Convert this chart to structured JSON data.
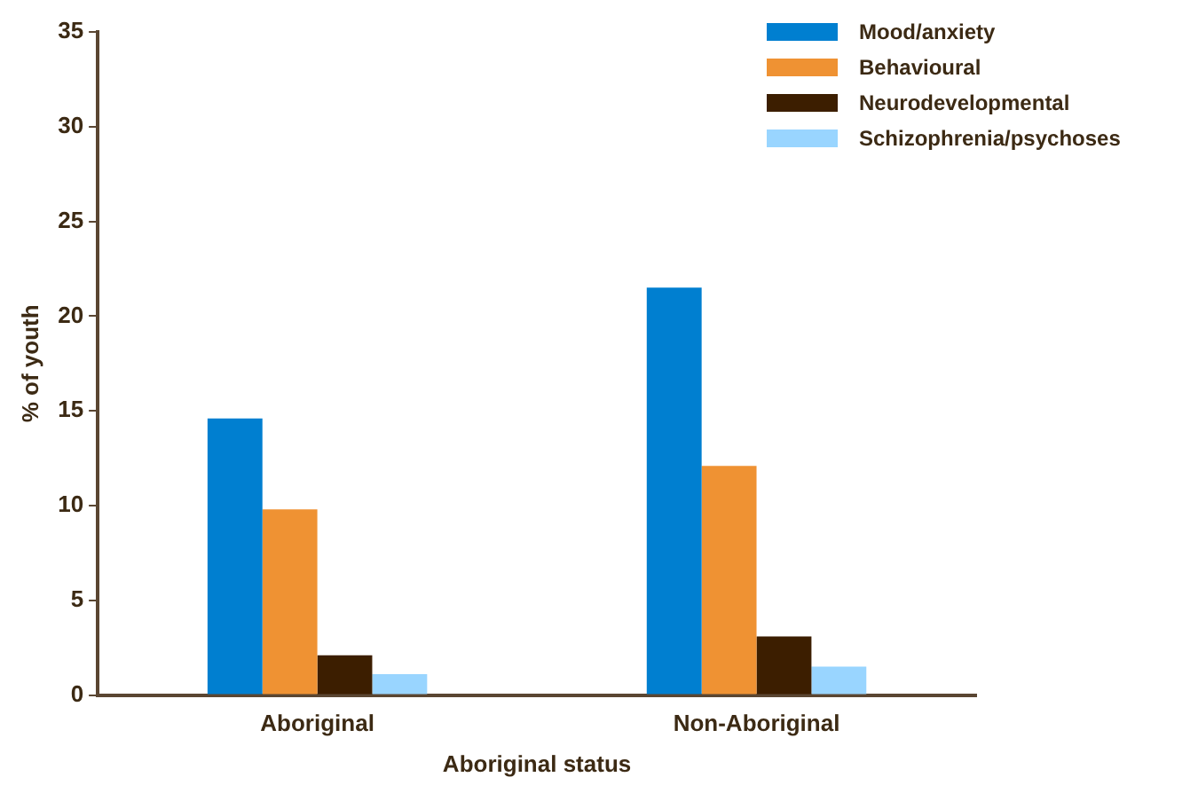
{
  "chart_data": {
    "type": "bar",
    "xlabel": "Aboriginal status",
    "ylabel": "% of youth",
    "categories": [
      "Aboriginal",
      "Non-Aboriginal"
    ],
    "series": [
      {
        "name": "Mood/anxiety",
        "color": "#007fd0",
        "values": [
          14.6,
          21.5
        ]
      },
      {
        "name": "Behavioural",
        "color": "#ef9233",
        "values": [
          9.8,
          12.1
        ]
      },
      {
        "name": "Neurodevelopmental",
        "color": "#3c1e00",
        "values": [
          2.1,
          3.1
        ]
      },
      {
        "name": "Schizophrenia/psychoses",
        "color": "#99d5ff",
        "values": [
          1.1,
          1.5
        ]
      }
    ],
    "ylim": [
      0,
      35
    ],
    "yticks": [
      0,
      5,
      10,
      15,
      20,
      25,
      30,
      35
    ],
    "grid": false,
    "legend": "top right"
  }
}
